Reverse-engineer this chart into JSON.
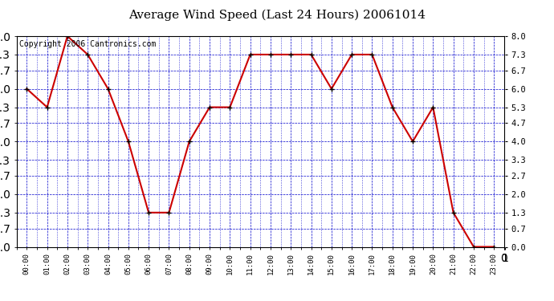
{
  "title": "Average Wind Speed (Last 24 Hours) 20061014",
  "copyright_text": "Copyright 2006 Cantronics.com",
  "hours": [
    "00:00",
    "01:00",
    "02:00",
    "03:00",
    "04:00",
    "05:00",
    "06:00",
    "07:00",
    "08:00",
    "09:00",
    "10:00",
    "11:00",
    "12:00",
    "13:00",
    "14:00",
    "15:00",
    "16:00",
    "17:00",
    "18:00",
    "19:00",
    "20:00",
    "21:00",
    "22:00",
    "23:00"
  ],
  "values": [
    6.0,
    5.3,
    8.0,
    7.3,
    6.0,
    4.0,
    1.3,
    1.3,
    4.0,
    5.3,
    5.3,
    7.3,
    7.3,
    7.3,
    7.3,
    6.0,
    7.3,
    7.3,
    5.3,
    4.0,
    5.3,
    1.3,
    0.0,
    0.0
  ],
  "yticks": [
    0.0,
    0.7,
    1.3,
    2.0,
    2.7,
    3.3,
    4.0,
    4.7,
    5.3,
    6.0,
    6.7,
    7.3,
    8.0
  ],
  "ylim": [
    0.0,
    8.0
  ],
  "line_color": "#cc0000",
  "marker_color": "#000000",
  "bg_color": "#ffffff",
  "plot_bg_color": "#ffffff",
  "grid_color": "#0000cc",
  "title_fontsize": 11,
  "copyright_fontsize": 7
}
